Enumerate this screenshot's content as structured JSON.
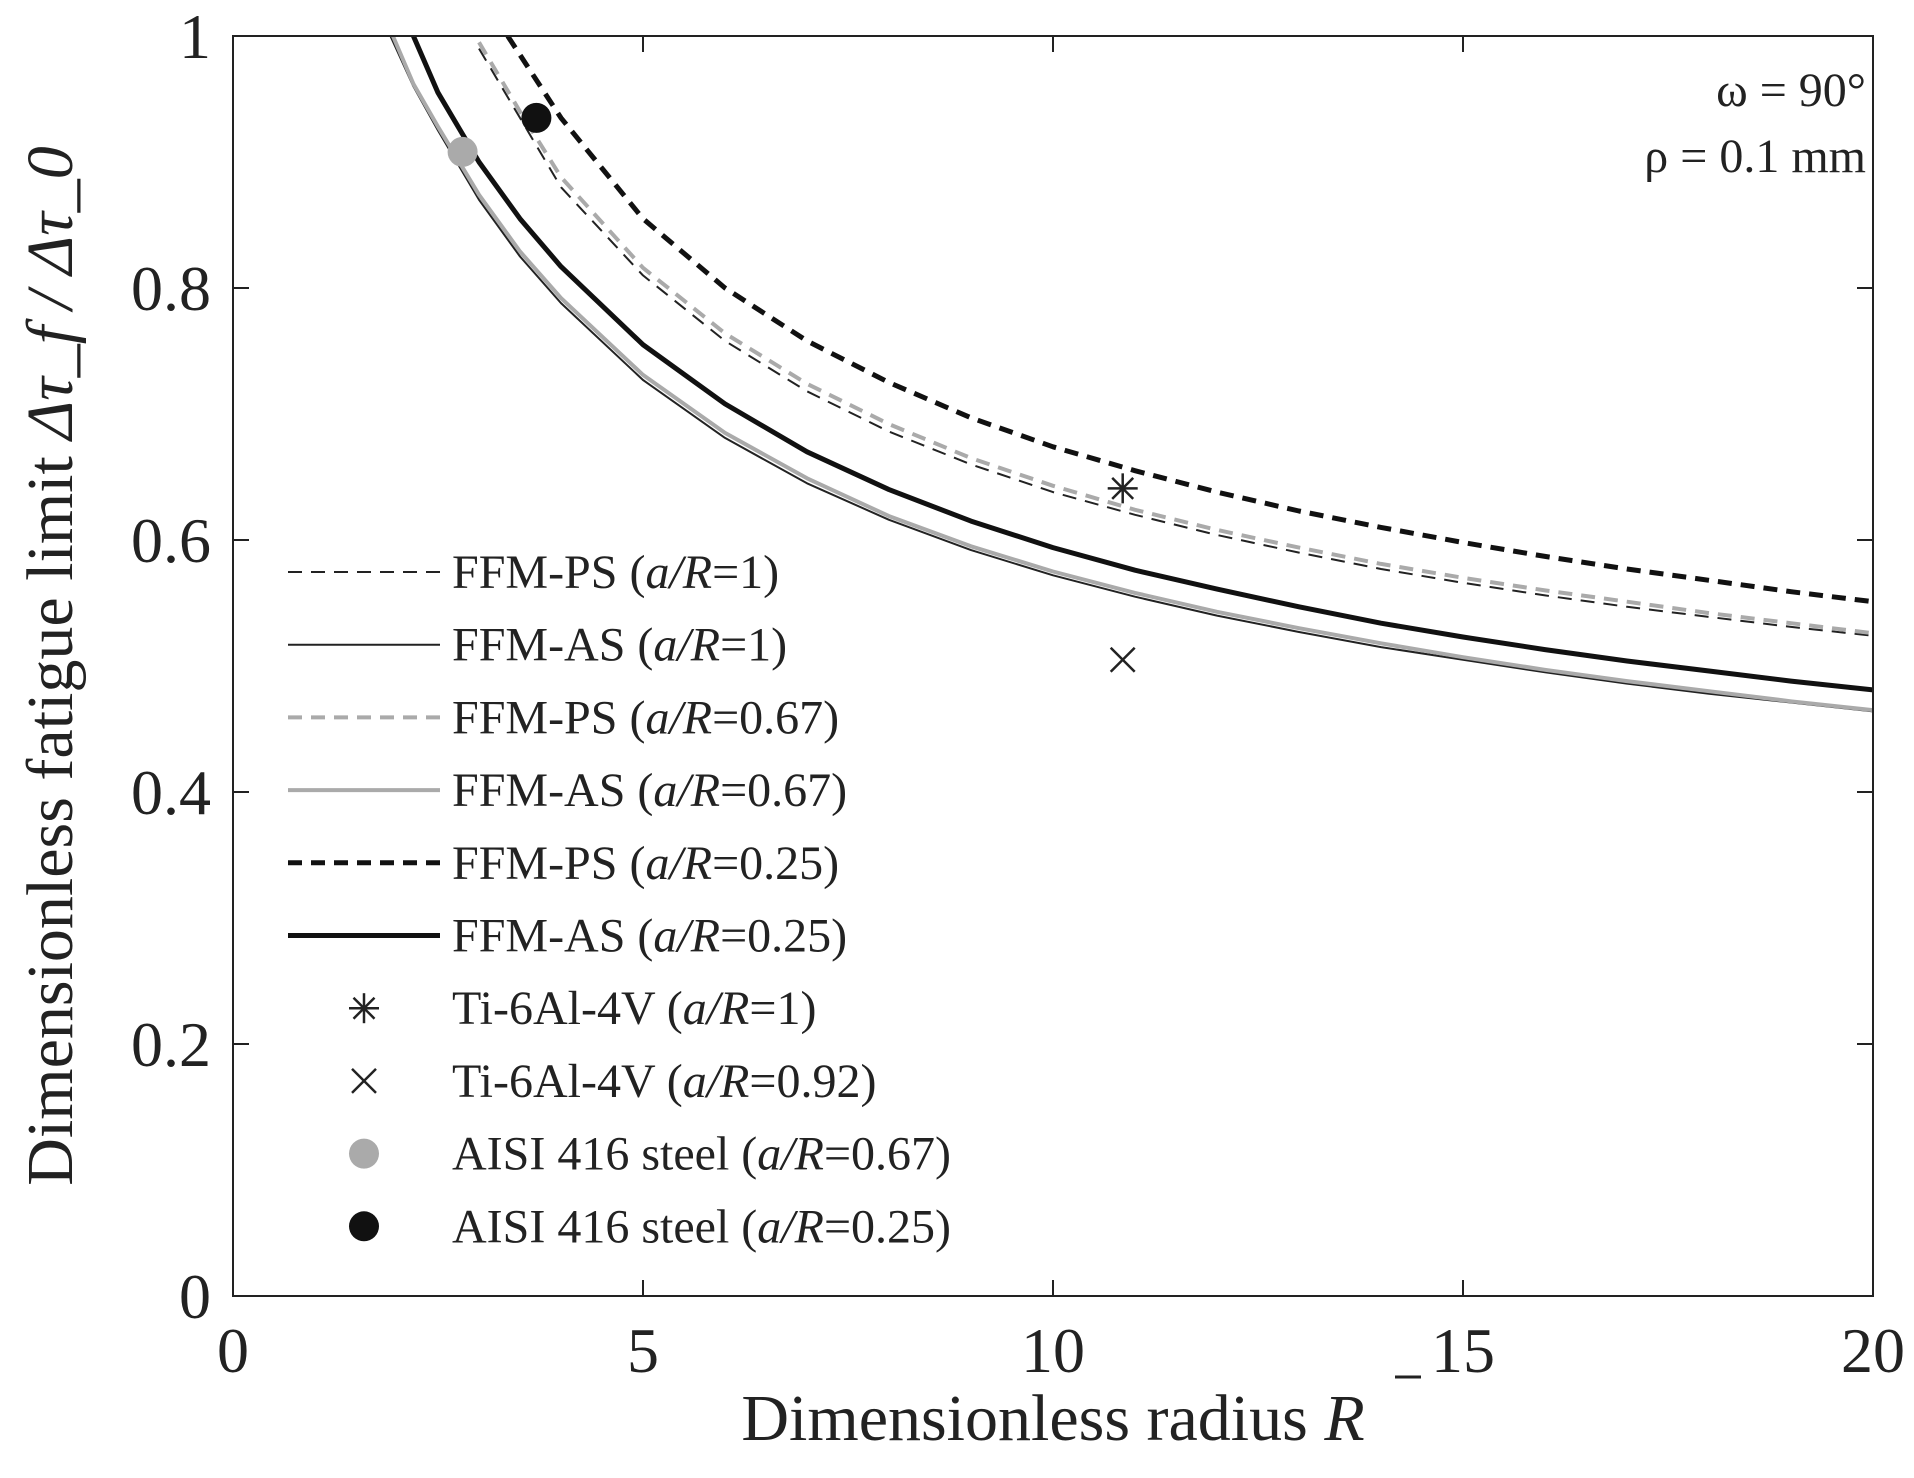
{
  "chart_data": {
    "type": "line",
    "xlim": [
      0,
      20
    ],
    "ylim": [
      0,
      1
    ],
    "x_ticks": [
      0,
      5,
      10,
      15,
      20
    ],
    "y_ticks": [
      0,
      0.2,
      0.4,
      0.6,
      0.8,
      1
    ],
    "x_tick_labels": [
      "0",
      "5",
      "10",
      "15",
      "20"
    ],
    "y_tick_labels": [
      "0",
      "0.2",
      "0.4",
      "0.6",
      "0.8",
      "1"
    ],
    "xlabel": {
      "text": "Dimensionless radius ",
      "symbol": "R"
    },
    "ylabel": {
      "text": "Dimensionless fatigue limit ",
      "symbol": "Δτ_f / Δτ_0"
    },
    "annotations": [
      "ω = 90°",
      "ρ = 0.1 mm"
    ],
    "grid": false,
    "legend_position": "left",
    "series": [
      {
        "name": "FFM-PS (a/R=1)",
        "label_main": "FFM-PS (",
        "label_param": "a/R",
        "label_tail": "=1)",
        "color": "#222222",
        "width": 2,
        "dash": "14,9",
        "x": [
          3.0,
          3.5,
          4,
          5,
          6,
          7,
          8,
          9,
          10,
          11,
          12,
          13,
          14,
          15,
          16,
          17,
          18,
          19,
          20
        ],
        "y": [
          0.99,
          0.935,
          0.88,
          0.81,
          0.758,
          0.718,
          0.686,
          0.66,
          0.638,
          0.62,
          0.604,
          0.59,
          0.577,
          0.566,
          0.556,
          0.547,
          0.539,
          0.531,
          0.524
        ]
      },
      {
        "name": "FFM-AS (a/R=1)",
        "label_main": "FFM-AS (",
        "label_param": "a/R",
        "label_tail": "=1)",
        "color": "#222222",
        "width": 2,
        "dash": "",
        "x": [
          1.92,
          2.2,
          2.5,
          3,
          3.5,
          4,
          5,
          6,
          7,
          8,
          9,
          10,
          11,
          12,
          13,
          14,
          15,
          16,
          17,
          18,
          19,
          20
        ],
        "y": [
          1.0,
          0.96,
          0.925,
          0.87,
          0.825,
          0.788,
          0.727,
          0.681,
          0.645,
          0.616,
          0.592,
          0.572,
          0.555,
          0.54,
          0.527,
          0.515,
          0.505,
          0.495,
          0.486,
          0.478,
          0.471,
          0.464
        ]
      },
      {
        "name": "FFM-PS (a/R=0.67)",
        "label_main": "FFM-PS (",
        "label_param": "a/R",
        "label_tail": "=0.67)",
        "color": "#aaaaaa",
        "width": 4,
        "dash": "14,9",
        "x": [
          3.0,
          3.5,
          4,
          5,
          6,
          7,
          8,
          9,
          10,
          11,
          12,
          13,
          14,
          15,
          16,
          17,
          18,
          19,
          20
        ],
        "y": [
          0.995,
          0.94,
          0.888,
          0.816,
          0.764,
          0.724,
          0.692,
          0.665,
          0.643,
          0.624,
          0.608,
          0.594,
          0.581,
          0.57,
          0.56,
          0.551,
          0.542,
          0.534,
          0.526
        ]
      },
      {
        "name": "FFM-AS (a/R=0.67)",
        "label_main": "FFM-AS (",
        "label_param": "a/R",
        "label_tail": "=0.67)",
        "color": "#aaaaaa",
        "width": 4,
        "dash": "",
        "x": [
          1.95,
          2.2,
          2.5,
          3,
          3.5,
          4,
          5,
          6,
          7,
          8,
          9,
          10,
          11,
          12,
          13,
          14,
          15,
          16,
          17,
          18,
          19,
          20
        ],
        "y": [
          1.0,
          0.962,
          0.928,
          0.874,
          0.829,
          0.792,
          0.731,
          0.685,
          0.649,
          0.619,
          0.595,
          0.575,
          0.558,
          0.543,
          0.53,
          0.518,
          0.507,
          0.497,
          0.488,
          0.48,
          0.472,
          0.465
        ]
      },
      {
        "name": "FFM-PS (a/R=0.25)",
        "label_main": "FFM-PS (",
        "label_param": "a/R",
        "label_tail": "=0.25)",
        "color": "#111111",
        "width": 5,
        "dash": "14,9",
        "x": [
          3.35,
          4,
          5,
          6,
          7,
          8,
          9,
          10,
          11,
          12,
          13,
          14,
          15,
          16,
          17,
          18,
          19,
          20
        ],
        "y": [
          1.0,
          0.935,
          0.855,
          0.8,
          0.758,
          0.725,
          0.697,
          0.674,
          0.655,
          0.638,
          0.623,
          0.61,
          0.598,
          0.587,
          0.577,
          0.568,
          0.559,
          0.551
        ]
      },
      {
        "name": "FFM-AS (a/R=0.25)",
        "label_main": "FFM-AS (",
        "label_param": "a/R",
        "label_tail": "=0.25)",
        "color": "#111111",
        "width": 5,
        "dash": "",
        "x": [
          2.2,
          2.5,
          3,
          3.5,
          4,
          5,
          6,
          7,
          8,
          9,
          10,
          11,
          12,
          13,
          14,
          15,
          16,
          17,
          18,
          19,
          20
        ],
        "y": [
          1.0,
          0.955,
          0.9,
          0.855,
          0.817,
          0.755,
          0.708,
          0.67,
          0.64,
          0.615,
          0.594,
          0.576,
          0.561,
          0.547,
          0.534,
          0.523,
          0.513,
          0.504,
          0.496,
          0.488,
          0.481
        ]
      }
    ],
    "markers": [
      {
        "name": "Ti-6Al-4V (a/R=1)",
        "label_main": "Ti-6Al-4V (",
        "label_param": "a/R",
        "label_tail": "=1)",
        "symbol": "asterisk",
        "color": "#222222",
        "x": 10.85,
        "y": 0.641
      },
      {
        "name": "Ti-6Al-4V (a/R=0.92)",
        "label_main": "Ti-6Al-4V (",
        "label_param": "a/R",
        "label_tail": "=0.92)",
        "symbol": "cross",
        "color": "#222222",
        "x": 10.85,
        "y": 0.505
      },
      {
        "name": "AISI 416 steel (a/R=0.67)",
        "label_main": "AISI 416 steel (",
        "label_param": "a/R",
        "label_tail": "=0.67)",
        "symbol": "dot",
        "color": "#aaaaaa",
        "x": 2.8,
        "y": 0.908
      },
      {
        "name": "AISI 416 steel (a/R=0.25)",
        "label_main": "AISI 416 steel (",
        "label_param": "a/R",
        "label_tail": "=0.25)",
        "symbol": "dot",
        "color": "#111111",
        "x": 3.7,
        "y": 0.935
      }
    ]
  }
}
